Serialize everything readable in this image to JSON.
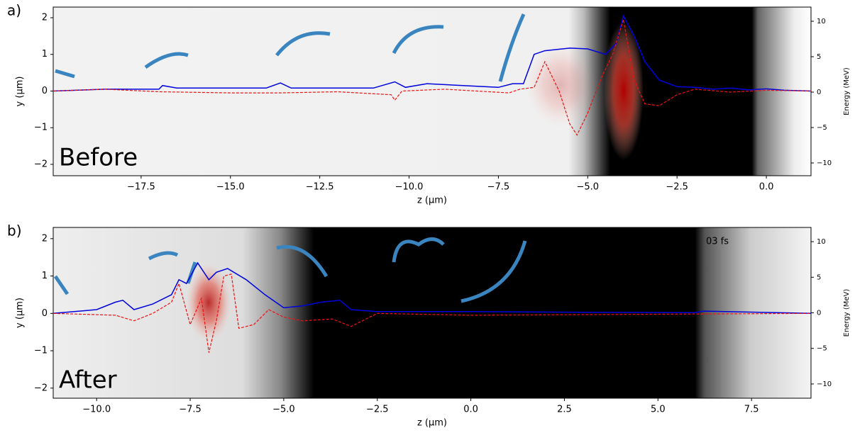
{
  "chart_data": [
    {
      "type": "line",
      "panel_label": "a)",
      "corner_label": "Before",
      "xlabel": "z (μm)",
      "ylabel": "y (μm)",
      "y2label": "Energy (MeV)",
      "xlim": [
        -19.96,
        1.25
      ],
      "ylim": [
        -2.31,
        2.29
      ],
      "y2lim": [
        -11.8,
        12
      ],
      "xticks": [
        {
          "value": -17.5,
          "label": "−17.5"
        },
        {
          "value": -15,
          "label": "−15.0"
        },
        {
          "value": -12.5,
          "label": "−12.5"
        },
        {
          "value": -10,
          "label": "−10.0"
        },
        {
          "value": -7.5,
          "label": "−7.5"
        },
        {
          "value": -5,
          "label": "−5.0"
        },
        {
          "value": -2.5,
          "label": "−2.5"
        },
        {
          "value": 0,
          "label": "0.0"
        }
      ],
      "yticks": [
        {
          "value": -2,
          "label": "−2"
        },
        {
          "value": -1,
          "label": "−1"
        },
        0,
        1,
        2
      ],
      "y2ticks": [
        {
          "value": -10,
          "label": "−10"
        },
        {
          "value": -5,
          "label": "−5"
        },
        0,
        5,
        10
      ],
      "series": [
        {
          "color": "#0000dd",
          "style": "solid",
          "x": [
            -19.96,
            -18.5,
            -17.0,
            -16.9,
            -16.5,
            -14.0,
            -13.6,
            -13.3,
            -11.0,
            -10.4,
            -10.1,
            -9.5,
            -7.5,
            -7.1,
            -6.8,
            -6.5,
            -6.2,
            -5.5,
            -5.0,
            -4.5,
            -4.2,
            -4.0,
            -3.7,
            -3.4,
            -3.0,
            -2.5,
            -2.0,
            -1.5,
            -1.0,
            -0.5,
            0.0,
            0.5,
            1.25
          ],
          "values": [
            0.0,
            0.05,
            0.05,
            0.15,
            0.08,
            0.08,
            0.22,
            0.08,
            0.08,
            0.25,
            0.1,
            0.2,
            0.1,
            0.2,
            0.2,
            1.0,
            1.1,
            1.17,
            1.15,
            1.0,
            1.3,
            2.05,
            1.5,
            0.8,
            0.3,
            0.12,
            0.1,
            0.05,
            0.08,
            0.03,
            0.06,
            0.02,
            0.0
          ]
        },
        {
          "color": "#ee1111",
          "style": "dashed",
          "x": [
            -19.96,
            -18.5,
            -17.0,
            -15.0,
            -13.6,
            -12.0,
            -10.5,
            -10.4,
            -10.2,
            -9.0,
            -7.2,
            -6.9,
            -6.5,
            -6.2,
            -5.8,
            -5.5,
            -5.3,
            -5.0,
            -4.6,
            -4.3,
            -4.0,
            -3.7,
            -3.4,
            -3.0,
            -2.5,
            -2.0,
            -1.0,
            0.0,
            1.25
          ],
          "values": [
            0.0,
            0.05,
            -0.02,
            -0.05,
            -0.05,
            -0.02,
            -0.1,
            -0.25,
            0.0,
            0.05,
            -0.05,
            0.05,
            0.1,
            0.8,
            0.0,
            -0.9,
            -1.2,
            -0.6,
            0.4,
            1.0,
            1.95,
            0.3,
            -0.35,
            -0.4,
            -0.1,
            0.05,
            -0.03,
            0.02,
            0.0
          ]
        }
      ]
    },
    {
      "type": "line",
      "panel_label": "b)",
      "corner_label": "After",
      "annotation": "03 fs",
      "xlabel": "z (μm)",
      "ylabel": "y (μm)",
      "y2label": "Energy (MeV)",
      "xlim": [
        -11.16,
        9.09
      ],
      "ylim": [
        -2.27,
        2.3
      ],
      "y2lim": [
        -12,
        12
      ],
      "xticks": [
        {
          "value": -10,
          "label": "−10.0"
        },
        {
          "value": -7.5,
          "label": "−7.5"
        },
        {
          "value": -5,
          "label": "−5.0"
        },
        {
          "value": -2.5,
          "label": "−2.5"
        },
        {
          "value": 0,
          "label": "0.0"
        },
        2.5,
        {
          "value": 5,
          "label": "5.0"
        },
        7.5
      ],
      "yticks": [
        {
          "value": -2,
          "label": "−2"
        },
        {
          "value": -1,
          "label": "−1"
        },
        0,
        1,
        2
      ],
      "y2ticks": [
        {
          "value": -10,
          "label": "−10"
        },
        {
          "value": -5,
          "label": "−5"
        },
        0,
        5,
        10
      ],
      "series": [
        {
          "color": "#0000dd",
          "style": "solid",
          "x": [
            -11.16,
            -10.0,
            -9.5,
            -9.3,
            -9.0,
            -8.5,
            -8.0,
            -7.8,
            -7.6,
            -7.3,
            -7.0,
            -6.8,
            -6.5,
            -6.0,
            -5.5,
            -5.0,
            -4.5,
            -4.0,
            -3.5,
            -3.2,
            -2.5,
            0.0,
            3.0,
            6.0,
            6.2,
            9.09
          ],
          "values": [
            0.0,
            0.1,
            0.3,
            0.35,
            0.1,
            0.25,
            0.5,
            0.9,
            0.8,
            1.35,
            0.9,
            1.1,
            1.2,
            0.9,
            0.5,
            0.15,
            0.2,
            0.3,
            0.35,
            0.1,
            0.05,
            0.05,
            0.03,
            0.02,
            0.06,
            0.0
          ]
        },
        {
          "color": "#ee1111",
          "style": "dashed",
          "x": [
            -11.16,
            -9.5,
            -9.0,
            -8.5,
            -8.0,
            -7.8,
            -7.5,
            -7.2,
            -7.0,
            -6.8,
            -6.6,
            -6.4,
            -6.2,
            -5.8,
            -5.4,
            -5.0,
            -4.5,
            -3.7,
            -3.2,
            -2.5,
            0.0,
            9.09
          ],
          "values": [
            0.0,
            -0.05,
            -0.2,
            0.0,
            0.3,
            0.8,
            -0.3,
            0.4,
            -1.05,
            -0.2,
            1.0,
            1.05,
            -0.4,
            -0.3,
            0.1,
            -0.1,
            -0.2,
            -0.15,
            -0.35,
            0.0,
            -0.05,
            0.0
          ]
        }
      ]
    }
  ]
}
